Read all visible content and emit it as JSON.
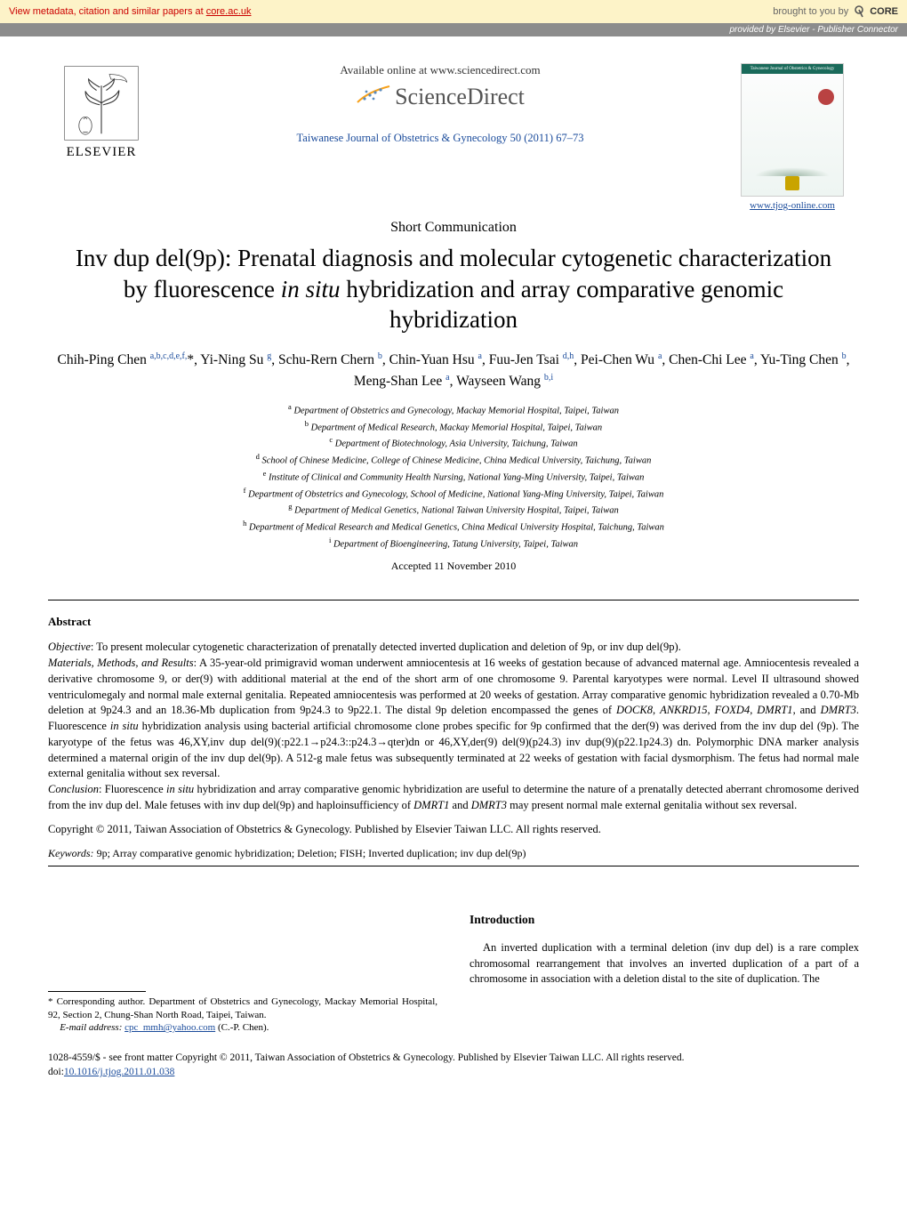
{
  "banner": {
    "left_pre": "View metadata, citation and similar papers at ",
    "left_link": "core.ac.uk",
    "right_pre": "brought to you by ",
    "right_brand": "CORE",
    "provided_pre": "provided by ",
    "provided_link": "Elsevier - Publisher Connector"
  },
  "header": {
    "elsevier": "ELSEVIER",
    "available_online": "Available online at www.sciencedirect.com",
    "sciencedirect": "ScienceDirect",
    "journal_cite": "Taiwanese Journal of Obstetrics & Gynecology 50 (2011) 67–73",
    "tjog_url": "www.tjog-online.com",
    "cover_title": "Taiwanese Journal of Obstetrics & Gynecology"
  },
  "article_type": "Short Communication",
  "title": "Inv dup del(9p): Prenatal diagnosis and molecular cytogenetic characterization by fluorescence in situ hybridization and array comparative genomic hybridization",
  "authors_html": "Chih-Ping Chen <sup>a,b,c,d,e,f,</sup>*, Yi-Ning Su <sup>g</sup>, Schu-Rern Chern <sup>b</sup>, Chin-Yuan Hsu <sup>a</sup>, Fuu-Jen Tsai <sup>d,h</sup>, Pei-Chen Wu <sup>a</sup>, Chen-Chi Lee <sup>a</sup>, Yu-Ting Chen <sup>b</sup>, Meng-Shan Lee <sup>a</sup>, Wayseen Wang <sup>b,i</sup>",
  "affiliations": [
    "a Department of Obstetrics and Gynecology, Mackay Memorial Hospital, Taipei, Taiwan",
    "b Department of Medical Research, Mackay Memorial Hospital, Taipei, Taiwan",
    "c Department of Biotechnology, Asia University, Taichung, Taiwan",
    "d School of Chinese Medicine, College of Chinese Medicine, China Medical University, Taichung, Taiwan",
    "e Institute of Clinical and Community Health Nursing, National Yang-Ming University, Taipei, Taiwan",
    "f Department of Obstetrics and Gynecology, School of Medicine, National Yang-Ming University, Taipei, Taiwan",
    "g Department of Medical Genetics, National Taiwan University Hospital, Taipei, Taiwan",
    "h Department of Medical Research and Medical Genetics, China Medical University Hospital, Taichung, Taiwan",
    "i Department of Bioengineering, Tatung University, Taipei, Taiwan"
  ],
  "accepted": "Accepted 11 November 2010",
  "abstract_heading": "Abstract",
  "abstract": {
    "objective_label": "Objective",
    "objective": ": To present molecular cytogenetic characterization of prenatally detected inverted duplication and deletion of 9p, or inv dup del(9p).",
    "materials_label": "Materials, Methods, and Results",
    "materials": ": A 35-year-old primigravid woman underwent amniocentesis at 16 weeks of gestation because of advanced maternal age. Amniocentesis revealed a derivative chromosome 9, or der(9) with additional material at the end of the short arm of one chromosome 9. Parental karyotypes were normal. Level II ultrasound showed ventriculomegaly and normal male external genitalia. Repeated amniocentesis was performed at 20 weeks of gestation. Array comparative genomic hybridization revealed a 0.70-Mb deletion at 9p24.3 and an 18.36-Mb duplication from 9p24.3 to 9p22.1. The distal 9p deletion encompassed the genes of DOCK8, ANKRD15, FOXD4, DMRT1, and DMRT3. Fluorescence in situ hybridization analysis using bacterial artificial chromosome clone probes specific for 9p confirmed that the der(9) was derived from the inv dup del (9p). The karyotype of the fetus was 46,XY,inv dup del(9)(:p22.1→p24.3::p24.3→qter)dn or 46,XY,der(9) del(9)(p24.3) inv dup(9)(p22.1p24.3) dn. Polymorphic DNA marker analysis determined a maternal origin of the inv dup del(9p). A 512-g male fetus was subsequently terminated at 22 weeks of gestation with facial dysmorphism. The fetus had normal male external genitalia without sex reversal.",
    "conclusion_label": "Conclusion",
    "conclusion": ": Fluorescence in situ hybridization and array comparative genomic hybridization are useful to determine the nature of a prenatally detected aberrant chromosome derived from the inv dup del. Male fetuses with inv dup del(9p) and haploinsufficiency of DMRT1 and DMRT3 may present normal male external genitalia without sex reversal.",
    "copyright": "Copyright © 2011, Taiwan Association of Obstetrics & Gynecology. Published by Elsevier Taiwan LLC. All rights reserved."
  },
  "keywords_label": "Keywords:",
  "keywords": " 9p; Array comparative genomic hybridization; Deletion; FISH; Inverted duplication; inv dup del(9p)",
  "intro_heading": "Introduction",
  "intro_p1": "An inverted duplication with a terminal deletion (inv dup del) is a rare complex chromosomal rearrangement that involves an inverted duplication of a part of a chromosome in association with a deletion distal to the site of duplication. The",
  "footnote": {
    "corr": "* Corresponding author. Department of Obstetrics and Gynecology, Mackay Memorial Hospital, 92, Section 2, Chung-Shan North Road, Taipei, Taiwan.",
    "email_label": "E-mail address: ",
    "email": "cpc_mmh@yahoo.com",
    "email_tail": " (C.-P. Chen)."
  },
  "bottom": {
    "line1": "1028-4559/$ - see front matter Copyright © 2011, Taiwan Association of Obstetrics & Gynecology. Published by Elsevier Taiwan LLC. All rights reserved.",
    "doi_label": "doi:",
    "doi": "10.1016/j.tjog.2011.01.038"
  },
  "colors": {
    "banner_bg": "#fdf3c8",
    "banner_text": "#c00",
    "provided_bg": "#8c8c8c",
    "link_blue": "#1a4b9b",
    "cover_green": "#1a6a5a",
    "cover_red": "#b94242"
  }
}
